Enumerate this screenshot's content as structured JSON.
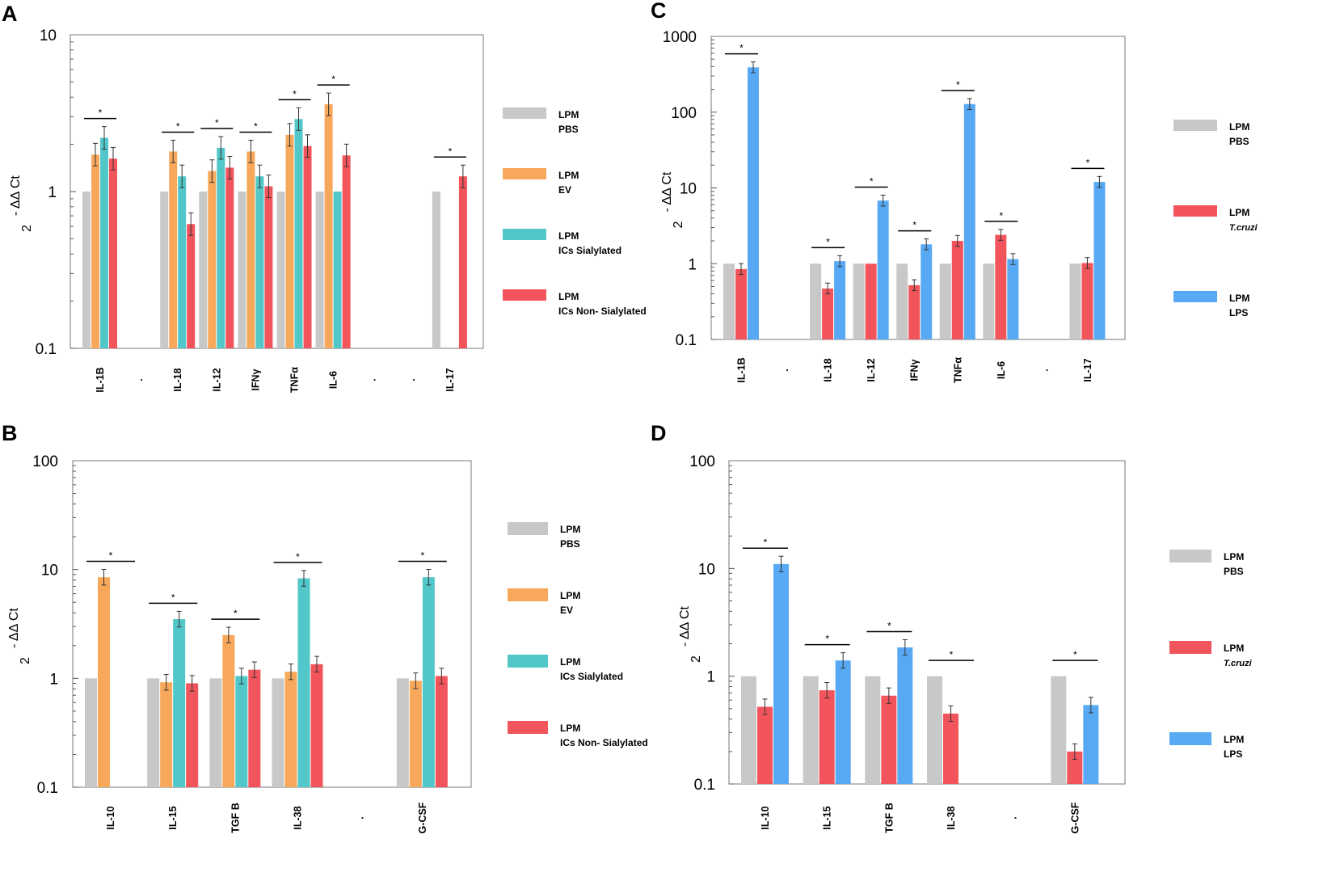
{
  "colors": {
    "gray": "#c8c8c8",
    "orange": "#f7a85a",
    "teal": "#52c7c9",
    "red": "#f2545b",
    "blue": "#58a9f4"
  },
  "chart_data": [
    {
      "panel": "A",
      "type": "bar",
      "scale": "log",
      "ylim": [
        0.1,
        10
      ],
      "yticks": [
        "10",
        "1",
        "0.1"
      ],
      "ylabel_base": "2",
      "ylabel_exp": "- ΔΔ Ct",
      "categories": [
        "IL-1B",
        ".",
        "IL-18",
        "IL-12",
        "IFNγ",
        "TNFα",
        "IL-6",
        ".",
        ".",
        "IL-17"
      ],
      "series": [
        {
          "name": "LPM PBS",
          "color": "gray",
          "values": [
            1,
            null,
            1,
            1,
            1,
            1,
            1,
            null,
            null,
            1
          ]
        },
        {
          "name": "LPM EV",
          "color": "orange",
          "values": [
            1.72,
            null,
            1.8,
            1.35,
            1.8,
            2.3,
            3.6,
            null,
            null,
            null
          ]
        },
        {
          "name": "LPM ICs Sialylated",
          "color": "teal",
          "values": [
            2.2,
            null,
            1.25,
            1.9,
            1.25,
            2.9,
            1.0,
            null,
            null,
            null
          ]
        },
        {
          "name": "LPM ICs Non-Sialylated",
          "color": "red",
          "values": [
            1.62,
            null,
            0.62,
            1.42,
            1.08,
            1.95,
            1.7,
            null,
            null,
            1.25
          ]
        }
      ],
      "legend": [
        {
          "line1": "LPM",
          "line2": "PBS",
          "color": "gray"
        },
        {
          "line1": "LPM",
          "line2": "EV",
          "color": "orange"
        },
        {
          "line1": "LPM",
          "line2": "ICs Sialylated",
          "color": "teal"
        },
        {
          "line1": "LPM",
          "line2": "ICs Non- Sialylated",
          "color": "red"
        }
      ],
      "significance": "*"
    },
    {
      "panel": "B",
      "type": "bar",
      "scale": "log",
      "ylim": [
        0.1,
        100
      ],
      "yticks": [
        "100",
        "10",
        "1",
        "0.1"
      ],
      "ylabel_base": "2",
      "ylabel_exp": "- ΔΔ Ct",
      "categories": [
        "IL-10",
        "IL-15",
        "TGF B",
        "IL-38",
        ".",
        "G-CSF"
      ],
      "series": [
        {
          "name": "LPM PBS",
          "color": "gray",
          "values": [
            1,
            1,
            1,
            1,
            null,
            1
          ]
        },
        {
          "name": "LPM EV",
          "color": "orange",
          "values": [
            8.5,
            0.92,
            2.5,
            1.15,
            null,
            0.95
          ]
        },
        {
          "name": "LPM ICs Sialylated",
          "color": "teal",
          "values": [
            null,
            3.5,
            1.05,
            8.3,
            null,
            8.5
          ]
        },
        {
          "name": "LPM ICs Non-Sialylated",
          "color": "red",
          "values": [
            null,
            0.9,
            1.2,
            1.35,
            null,
            1.05
          ]
        }
      ],
      "legend": [
        {
          "line1": "LPM",
          "line2": "PBS",
          "color": "gray"
        },
        {
          "line1": "LPM",
          "line2": "EV",
          "color": "orange"
        },
        {
          "line1": "LPM",
          "line2": "ICs Sialylated",
          "color": "teal"
        },
        {
          "line1": "LPM",
          "line2": "ICs Non- Sialylated",
          "color": "red"
        }
      ],
      "significance": "*"
    },
    {
      "panel": "C",
      "type": "bar",
      "scale": "log",
      "ylim": [
        0.1,
        1000
      ],
      "yticks": [
        "1000",
        "100",
        "10",
        "1",
        "0.1"
      ],
      "ylabel_base": "2",
      "ylabel_exp": "- ΔΔ Ct",
      "categories": [
        "IL-1B",
        ".",
        "IL-18",
        "IL-12",
        "IFNγ",
        "TNFα",
        "IL-6",
        ".",
        "IL-17"
      ],
      "series": [
        {
          "name": "LPM PBS",
          "color": "gray",
          "values": [
            1,
            null,
            1,
            1,
            1,
            1,
            1,
            null,
            1
          ]
        },
        {
          "name": "LPM T.cruzi",
          "color": "red",
          "values": [
            0.85,
            null,
            0.47,
            1.0,
            0.52,
            2.0,
            2.4,
            null,
            1.02
          ]
        },
        {
          "name": "LPM LPS",
          "color": "blue",
          "values": [
            390,
            null,
            1.08,
            6.8,
            1.8,
            128,
            1.15,
            null,
            12
          ]
        }
      ],
      "legend": [
        {
          "line1": "LPM",
          "line2": "PBS",
          "color": "gray",
          "italic": false
        },
        {
          "line1": "LPM",
          "line2": "T.cruzi",
          "color": "red",
          "italic": true
        },
        {
          "line1": "LPM",
          "line2": "LPS",
          "color": "blue",
          "italic": false
        }
      ],
      "significance": "*"
    },
    {
      "panel": "D",
      "type": "bar",
      "scale": "log",
      "ylim": [
        0.1,
        100
      ],
      "yticks": [
        "100",
        "10",
        "1",
        "0.1"
      ],
      "ylabel_base": "2",
      "ylabel_exp": "- ΔΔ Ct",
      "categories": [
        "IL-10",
        "IL-15",
        "TGF B",
        "IL-38",
        ".",
        "G-CSF"
      ],
      "series": [
        {
          "name": "LPM PBS",
          "color": "gray",
          "values": [
            1,
            1,
            1,
            1,
            null,
            1
          ]
        },
        {
          "name": "LPM T.cruzi",
          "color": "red",
          "values": [
            0.52,
            0.74,
            0.66,
            0.45,
            null,
            0.2
          ]
        },
        {
          "name": "LPM LPS",
          "color": "blue",
          "values": [
            11,
            1.4,
            1.85,
            null,
            null,
            0.54
          ]
        }
      ],
      "legend": [
        {
          "line1": "LPM",
          "line2": "PBS",
          "color": "gray",
          "italic": false
        },
        {
          "line1": "LPM",
          "line2": "T.cruzi",
          "color": "red",
          "italic": true
        },
        {
          "line1": "LPM",
          "line2": "LPS",
          "color": "blue",
          "italic": false
        }
      ],
      "significance": "*"
    }
  ]
}
